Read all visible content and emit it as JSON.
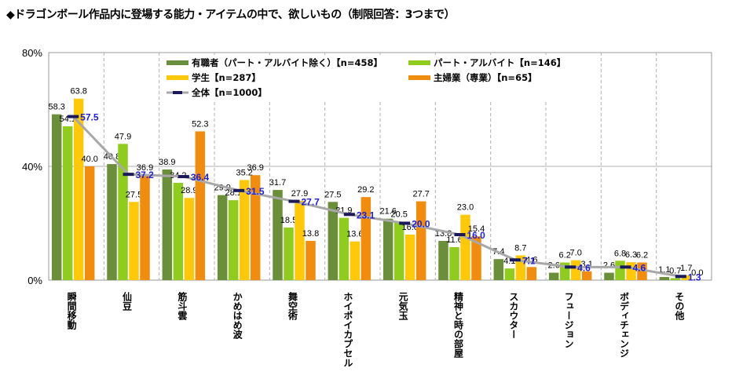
{
  "title": "◆ドラゴンボール作品内に登場する能力・アイテムの中で、欲しいもの（制限回答：3つまで）",
  "chart_data": {
    "type": "bar",
    "title": "◆ドラゴンボール作品内に登場する能力・アイテムの中で、欲しいもの（制限回答：3つまで）",
    "xlabel": "",
    "ylabel": "",
    "ylim": [
      0,
      80
    ],
    "yticks": [
      "0%",
      "40%",
      "80%"
    ],
    "ytick_values": [
      0,
      40,
      80
    ],
    "grid": true,
    "legend_position": "top-right",
    "categories": [
      "瞬間移動",
      "仙豆",
      "筋斗雲",
      "かめはめ波",
      "舞空術",
      "ホイポイカプセル",
      "元気玉",
      "精神と時の部屋",
      "スカウター",
      "フュージョン",
      "ボディチェンジ",
      "その他"
    ],
    "series": [
      {
        "name": "有職者（パート・アルバイト除く）【n=458】",
        "color": "#6b8e3a",
        "values": [
          58.3,
          40.8,
          38.9,
          29.9,
          31.7,
          27.5,
          21.6,
          13.8,
          7.4,
          2.6,
          2.6,
          1.1
        ]
      },
      {
        "name": "パート・アルバイト【n=146】",
        "color": "#8fcc1f",
        "values": [
          54.1,
          47.9,
          34.2,
          28.1,
          18.5,
          21.9,
          20.5,
          11.6,
          4.1,
          6.2,
          6.8,
          0.7
        ]
      },
      {
        "name": "学生【n=287】",
        "color": "#ffc80a",
        "values": [
          63.8,
          27.5,
          28.9,
          35.2,
          27.9,
          13.6,
          16.0,
          23.0,
          8.7,
          7.0,
          6.3,
          1.7
        ]
      },
      {
        "name": "主婦業（専業）【n=65】",
        "color": "#f08c10",
        "values": [
          40.0,
          36.9,
          52.3,
          36.9,
          13.8,
          29.2,
          27.7,
          15.4,
          4.6,
          3.1,
          6.2,
          0.0
        ]
      },
      {
        "name": "全体【n=1000】",
        "type": "line",
        "color": "#a8a8a8",
        "marker_color": "#1a1a5a",
        "label_color": "#2020d0",
        "values": [
          57.5,
          37.2,
          36.4,
          31.5,
          27.7,
          23.1,
          20.0,
          16.0,
          7.1,
          4.6,
          4.6,
          1.3
        ]
      }
    ],
    "legend": [
      "有職者（パート・アルバイト除く）【n=458】",
      "パート・アルバイト【n=146】",
      "学生【n=287】",
      "主婦業（専業）【n=65】",
      "全体【n=1000】"
    ]
  }
}
